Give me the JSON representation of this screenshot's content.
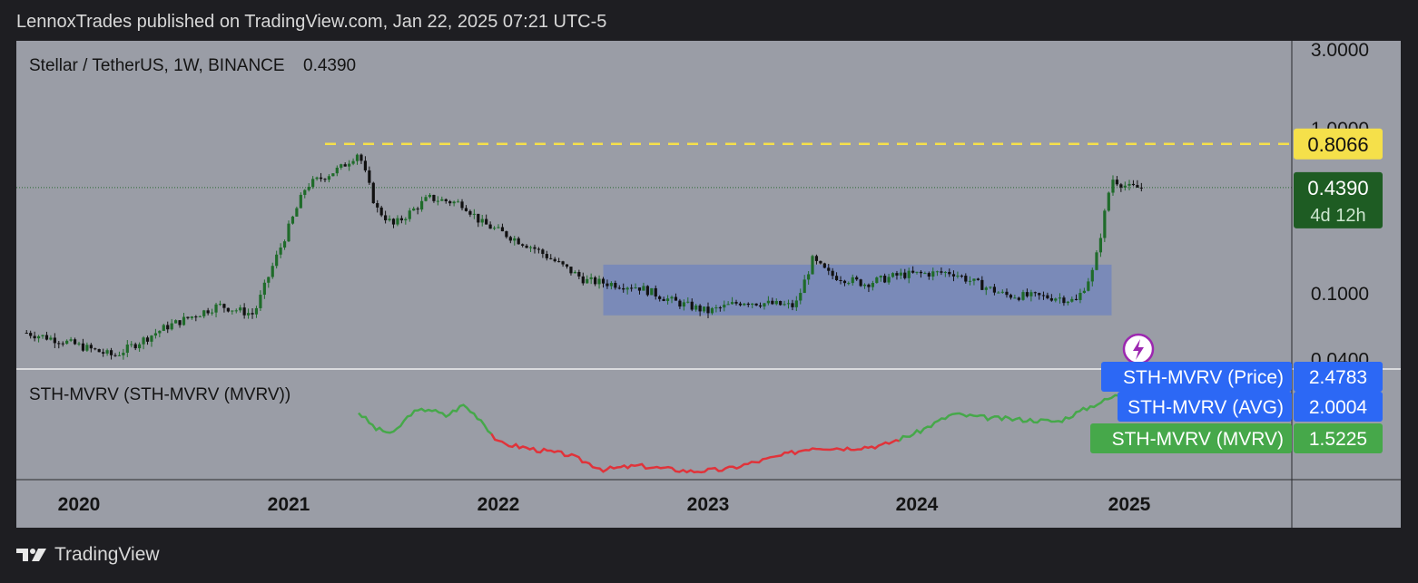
{
  "header": {
    "publisher_line": "LennoxTrades published on TradingView.com, Jan 22, 2025 07:21 UTC-5"
  },
  "footer": {
    "brand": "TradingView"
  },
  "colors": {
    "background": "#1e1e22",
    "pane": "#9a9da6",
    "candle_up": "#1f6b2a",
    "candle_down": "#111111",
    "range_box": "#6f84bd",
    "resistance": "#f5e04a",
    "price_label": "#1e5c23",
    "indicator_label": "#2c68f5",
    "mvrv_green": "#46a84a",
    "mvrv_red": "#e0333a"
  },
  "chart_data": {
    "type": "candlestick",
    "title": "Stellar / TetherUS, 1W, BINANCE",
    "last_price_text": "0.4390",
    "y_scale": "log",
    "y_ticks": [
      "3.0000",
      "1.0000",
      "0.1000",
      "0.0400"
    ],
    "x_ticks": [
      "2020",
      "2021",
      "2022",
      "2023",
      "2024",
      "2025"
    ],
    "x_range": [
      "2019-10",
      "2025-04"
    ],
    "ylim": [
      0.035,
      3.4
    ],
    "anchors": [
      [
        "2019-10",
        0.058
      ],
      [
        "2019-12",
        0.052
      ],
      [
        "2020-03",
        0.042
      ],
      [
        "2020-06",
        0.063
      ],
      [
        "2020-09",
        0.085
      ],
      [
        "2020-11",
        0.075
      ],
      [
        "2020-12",
        0.14
      ],
      [
        "2021-02",
        0.45
      ],
      [
        "2021-04",
        0.58
      ],
      [
        "2021-05",
        0.72
      ],
      [
        "2021-06",
        0.33
      ],
      [
        "2021-07",
        0.26
      ],
      [
        "2021-09",
        0.38
      ],
      [
        "2021-11",
        0.35
      ],
      [
        "2021-12",
        0.27
      ],
      [
        "2022-03",
        0.19
      ],
      [
        "2022-06",
        0.12
      ],
      [
        "2022-09",
        0.11
      ],
      [
        "2022-11",
        0.09
      ],
      [
        "2023-01",
        0.078
      ],
      [
        "2023-03",
        0.09
      ],
      [
        "2023-06",
        0.084
      ],
      [
        "2023-07",
        0.16
      ],
      [
        "2023-08",
        0.13
      ],
      [
        "2023-10",
        0.115
      ],
      [
        "2023-12",
        0.13
      ],
      [
        "2024-03",
        0.135
      ],
      [
        "2024-04",
        0.12
      ],
      [
        "2024-06",
        0.098
      ],
      [
        "2024-09",
        0.095
      ],
      [
        "2024-10",
        0.09
      ],
      [
        "2024-11",
        0.14
      ],
      [
        "2024-12",
        0.5
      ],
      [
        "2025-01",
        0.439
      ]
    ],
    "annotations": {
      "resistance": {
        "value": 0.8066,
        "label": "0.8066"
      },
      "current_price": {
        "value": 0.439,
        "label": "0.4390",
        "countdown": "4d 12h"
      },
      "range_box": {
        "from": "2022-07",
        "to": "2024-12",
        "low": 0.074,
        "high": 0.15
      }
    },
    "indicator": {
      "title": "STH-MVRV (STH-MVRV (MVRV))",
      "labels": [
        {
          "name": "STH-MVRV (Price)",
          "value": "2.4783"
        },
        {
          "name": "STH-MVRV (AVG)",
          "value": "2.0004"
        },
        {
          "name": "STH-MVRV (MVRV)",
          "value": "1.5225"
        }
      ],
      "mvrv_series": [
        [
          "2021-05",
          1.28
        ],
        [
          "2021-06",
          1.1
        ],
        [
          "2021-07",
          1.05
        ],
        [
          "2021-08",
          1.27
        ],
        [
          "2021-09",
          1.32
        ],
        [
          "2021-10",
          1.24
        ],
        [
          "2021-11",
          1.36
        ],
        [
          "2021-12",
          1.2
        ],
        [
          "2022-01",
          0.95
        ],
        [
          "2022-03",
          0.88
        ],
        [
          "2022-05",
          0.82
        ],
        [
          "2022-07",
          0.66
        ],
        [
          "2022-09",
          0.7
        ],
        [
          "2022-12",
          0.64
        ],
        [
          "2023-02",
          0.66
        ],
        [
          "2023-05",
          0.8
        ],
        [
          "2023-07",
          0.9
        ],
        [
          "2023-09",
          0.89
        ],
        [
          "2023-11",
          0.92
        ],
        [
          "2024-01",
          1.06
        ],
        [
          "2024-03",
          1.26
        ],
        [
          "2024-05",
          1.22
        ],
        [
          "2024-07",
          1.2
        ],
        [
          "2024-09",
          1.18
        ],
        [
          "2024-11",
          1.36
        ],
        [
          "2025-01",
          1.52
        ]
      ]
    }
  }
}
